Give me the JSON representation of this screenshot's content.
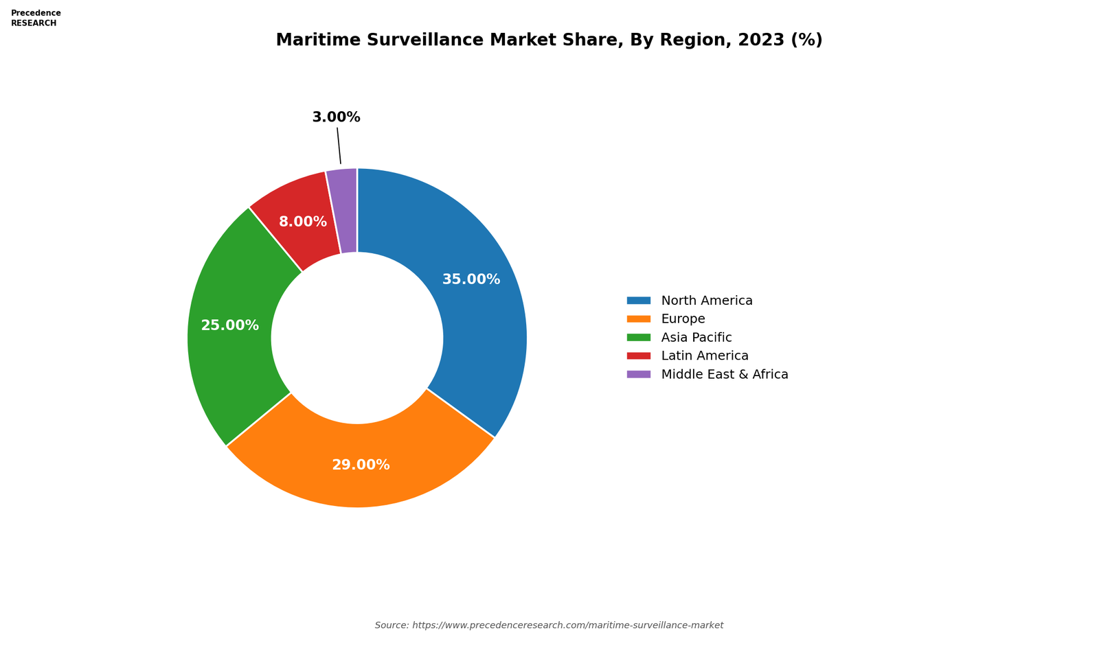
{
  "chart_data": {
    "type": "pie",
    "title": "Maritime Surveillance Market Share, By Region, 2023 (%)",
    "categories": [
      "North America",
      "Europe",
      "Asia Pacific",
      "Latin America",
      "Middle East & Africa"
    ],
    "values": [
      35.0,
      29.0,
      25.0,
      8.0,
      3.0
    ],
    "value_labels": [
      "35.00%",
      "29.00%",
      "25.00%",
      "8.00%",
      "3.00%"
    ],
    "data_labels": true,
    "legend": "center left",
    "annotations": [
      "Source: https://www.precedenceresearch.com/maritime-surveillance-market",
      "Precedence\nRESEARCH"
    ]
  }
}
